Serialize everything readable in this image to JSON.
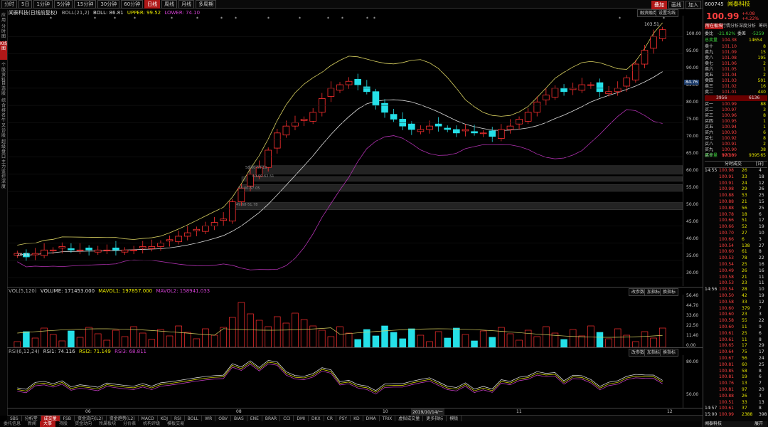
{
  "toolbar": {
    "periods": [
      "分时",
      "5日",
      "1分钟",
      "5分钟",
      "15分钟",
      "30分钟",
      "60分钟",
      "日线",
      "周线",
      "月线",
      "多周期"
    ],
    "active_period": "日线",
    "right_buttons": [
      "叠加",
      "画线",
      "加入"
    ]
  },
  "left_nav": [
    "应用",
    "分时图",
    "K线图",
    "个股资料",
    "自选股",
    "综合排名",
    "牛叉诊股",
    "超级盘口",
    "主力监控",
    "深度"
  ],
  "main_chart": {
    "stock_name": "闻泰科技(日线前复权)",
    "boll_params": "BOLL(21,2)",
    "boll_value": "BOLL: 86.81",
    "upper_value": "UPPER: 99.52",
    "lower_value": "LOWER: 74.10",
    "buttons": [
      "融资融券",
      "设置均线"
    ],
    "y_ticks": [
      "100.00",
      "95.00",
      "90.00",
      "85.00",
      "80.00",
      "75.00",
      "70.00",
      "65.00",
      "60.00",
      "55.00",
      "50.00",
      "45.00",
      "40.00",
      "35.00",
      "30.00"
    ],
    "price_label": "84.76",
    "high_label": "103.51",
    "low_label": "30.85",
    "gap_labels": [
      "60.00-62.51",
      "58.00-59.13",
      "55.00-57.05",
      "49.68-51.78"
    ]
  },
  "volume_panel": {
    "title": "VOL(5,120)",
    "volume": "VOLUME: 171453.000",
    "mavol1": "MAVOL1: 197857.000",
    "mavol2": "MAVOL2: 158941.033",
    "buttons": [
      "改参数",
      "加指标",
      "换指标"
    ],
    "y_ticks": [
      "56.40",
      "44.70",
      "33.60",
      "22.50",
      "11.40",
      "0.00"
    ]
  },
  "rsi_panel": {
    "title": "RSI(6,12,24)",
    "rsi1": "RSI1: 74.116",
    "rsi2": "RSI2: 71.149",
    "rsi3": "RSI3: 68.811",
    "buttons": [
      "改参数",
      "加指标",
      "换指标"
    ],
    "y_ticks": [
      "80.00",
      "50.00"
    ]
  },
  "x_axis": {
    "labels": [
      "06",
      "08",
      "10",
      "2019/10/14/一",
      "11",
      "12"
    ]
  },
  "indicator_tabs": [
    "SBS",
    "分析堂",
    "成交量",
    "FSB",
    "资金流向(L2)",
    "资金趋势(L2)",
    "MACD",
    "KDJ",
    "RSI",
    "BOLL",
    "WR",
    "OBV",
    "BIAS",
    "ENE",
    "BRAR",
    "CCI",
    "DMI",
    "DKX",
    "CR",
    "PSY",
    "KD",
    "DMA",
    "TRIX",
    "虚拟成交量",
    "更多指标",
    "模板"
  ],
  "active_indicator": "成交量",
  "bottom_tabs": [
    "委托信息",
    "新闻",
    "大事",
    "持股",
    "资金动向",
    "所属板块",
    "分价表",
    "机构评级",
    "模板交易"
  ],
  "active_bottom": "大事",
  "chart_data": {
    "type": "candlestick",
    "title": "闻泰科技(日线前复权)",
    "ylim": [
      30,
      104
    ],
    "series": [
      {
        "name": "BOLL",
        "value": 86.81
      },
      {
        "name": "UPPER",
        "value": 99.52
      },
      {
        "name": "LOWER",
        "value": 74.1
      }
    ],
    "approx_closes": [
      37,
      36,
      37,
      38,
      38,
      39,
      38,
      38,
      38,
      38,
      38,
      38,
      38,
      38,
      39,
      39,
      40,
      41,
      42,
      43,
      44,
      45,
      46,
      47,
      52,
      56,
      60,
      62,
      67,
      72,
      74,
      75,
      76,
      78,
      82,
      85,
      86,
      87,
      86,
      84,
      80,
      78,
      76,
      74,
      73,
      73,
      74,
      74,
      73,
      72,
      73,
      72,
      72,
      71,
      73,
      74,
      76,
      78,
      81,
      83,
      85,
      84,
      85,
      86,
      86,
      84,
      84,
      85,
      88,
      92,
      96,
      100,
      102
    ]
  },
  "right_panel": {
    "code": "600745",
    "name": "闻泰科技",
    "price": "100.99",
    "change": "+4.08",
    "change_pct": "+4.22%",
    "tabs": [
      "所在板块",
      "行情分析",
      "深度分析",
      "筹码"
    ],
    "wei_bi_label": "委比",
    "wei_bi": "-21.82%",
    "wei_cha_label": "委差",
    "wei_cha": "-5259",
    "zong_mai_label": "总卖量",
    "zong_mai_price": "104.38",
    "zong_mai": "14654",
    "asks": [
      {
        "label": "卖十",
        "price": "101.10",
        "vol": "8"
      },
      {
        "label": "卖九",
        "price": "101.09",
        "vol": "15"
      },
      {
        "label": "卖八",
        "price": "101.08",
        "vol": "195"
      },
      {
        "label": "卖七",
        "price": "101.06",
        "vol": "2"
      },
      {
        "label": "卖六",
        "price": "101.05",
        "vol": "1"
      },
      {
        "label": "卖五",
        "price": "101.04",
        "vol": "2"
      },
      {
        "label": "卖四",
        "price": "101.03",
        "vol": "501"
      },
      {
        "label": "卖三",
        "price": "101.02",
        "vol": "16"
      },
      {
        "label": "卖二",
        "price": "101.01",
        "vol": "440"
      },
      {
        "label": "卖一",
        "price": "101.00",
        "vol": "661"
      }
    ],
    "mid_left": "3956",
    "mid_right": "6136",
    "bids": [
      {
        "label": "买一",
        "price": "100.99",
        "vol": "88"
      },
      {
        "label": "买二",
        "price": "100.97",
        "vol": "3"
      },
      {
        "label": "买三",
        "price": "100.96",
        "vol": "8"
      },
      {
        "label": "买四",
        "price": "100.95",
        "vol": "1"
      },
      {
        "label": "买五",
        "price": "100.94",
        "vol": "1"
      },
      {
        "label": "买六",
        "price": "100.93",
        "vol": "6"
      },
      {
        "label": "买七",
        "price": "100.92",
        "vol": "8"
      },
      {
        "label": "买八",
        "price": "100.91",
        "vol": "2"
      },
      {
        "label": "买九",
        "price": "100.90",
        "vol": "38"
      },
      {
        "label": "买十",
        "price": "100.89",
        "vol": "65"
      }
    ],
    "zong_buy_label": "总买量",
    "zong_buy_price": "97.30",
    "zong_buy": "9395",
    "trades_title": "分时成交",
    "trades_more": "[详]",
    "trades": [
      {
        "t": "14:55",
        "p": "100.98",
        "v": "26",
        "d": "4"
      },
      {
        "t": "",
        "p": "100.91",
        "v": "33",
        "d": "18"
      },
      {
        "t": "",
        "p": "100.91",
        "v": "24",
        "d": "12"
      },
      {
        "t": "",
        "p": "100.98",
        "v": "29",
        "d": "26"
      },
      {
        "t": "",
        "p": "100.88",
        "v": "53",
        "d": "25"
      },
      {
        "t": "",
        "p": "100.88",
        "v": "21",
        "d": "15"
      },
      {
        "t": "",
        "p": "100.88",
        "v": "56",
        "d": "25"
      },
      {
        "t": "",
        "p": "100.78",
        "v": "18",
        "d": "6"
      },
      {
        "t": "",
        "p": "100.66",
        "v": "51",
        "d": "17"
      },
      {
        "t": "",
        "p": "100.66",
        "v": "52",
        "d": "19"
      },
      {
        "t": "",
        "p": "100.70",
        "v": "27",
        "d": "10"
      },
      {
        "t": "",
        "p": "100.66",
        "v": "6",
        "d": "3"
      },
      {
        "t": "",
        "p": "100.54",
        "v": "138",
        "d": "27"
      },
      {
        "t": "",
        "p": "100.60",
        "v": "61",
        "d": "8"
      },
      {
        "t": "",
        "p": "100.53",
        "v": "78",
        "d": "22"
      },
      {
        "t": "",
        "p": "100.54",
        "v": "25",
        "d": "16"
      },
      {
        "t": "",
        "p": "100.49",
        "v": "26",
        "d": "16"
      },
      {
        "t": "",
        "p": "100.58",
        "v": "21",
        "d": "11"
      },
      {
        "t": "",
        "p": "100.53",
        "v": "23",
        "d": "11"
      },
      {
        "t": "14:56",
        "p": "100.54",
        "v": "28",
        "d": "10"
      },
      {
        "t": "",
        "p": "100.50",
        "v": "42",
        "d": "19"
      },
      {
        "t": "",
        "p": "100.58",
        "v": "33",
        "d": "12"
      },
      {
        "t": "",
        "p": "100.60",
        "v": "379",
        "d": "7"
      },
      {
        "t": "",
        "p": "100.60",
        "v": "23",
        "d": "3"
      },
      {
        "t": "",
        "p": "100.58",
        "v": "55",
        "d": "22"
      },
      {
        "t": "",
        "p": "100.60",
        "v": "11",
        "d": "9"
      },
      {
        "t": "",
        "p": "100.61",
        "v": "25",
        "d": "6"
      },
      {
        "t": "",
        "p": "100.61",
        "v": "11",
        "d": "8"
      },
      {
        "t": "",
        "p": "100.65",
        "v": "17",
        "d": "29"
      },
      {
        "t": "",
        "p": "100.64",
        "v": "75",
        "d": "17"
      },
      {
        "t": "",
        "p": "100.67",
        "v": "56",
        "d": "24"
      },
      {
        "t": "",
        "p": "100.81",
        "v": "60",
        "d": "25"
      },
      {
        "t": "",
        "p": "100.85",
        "v": "58",
        "d": "8"
      },
      {
        "t": "",
        "p": "100.81",
        "v": "19",
        "d": "6"
      },
      {
        "t": "",
        "p": "100.76",
        "v": "13",
        "d": "7"
      },
      {
        "t": "",
        "p": "100.81",
        "v": "97",
        "d": "20"
      },
      {
        "t": "",
        "p": "100.88",
        "v": "26",
        "d": "3"
      },
      {
        "t": "",
        "p": "100.51",
        "v": "33",
        "d": "13"
      },
      {
        "t": "14:57",
        "p": "100.61",
        "v": "37",
        "d": "8"
      },
      {
        "t": "15:00",
        "p": "100.99",
        "v": "2388",
        "d": "398"
      }
    ],
    "bottom_left": "闻泰科技",
    "bottom_right": "展开"
  }
}
